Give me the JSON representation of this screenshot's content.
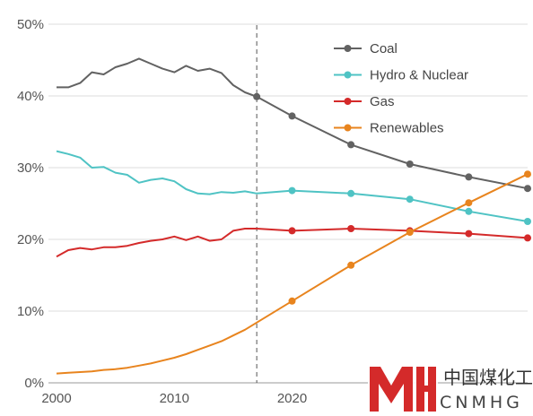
{
  "chart_data": {
    "type": "line",
    "title": "",
    "xlabel": "",
    "ylabel": "",
    "xlim": [
      2000,
      2040
    ],
    "ylim": [
      0,
      50
    ],
    "x_ticks": [
      {
        "value": 2000,
        "label": "2000"
      },
      {
        "value": 2010,
        "label": "2010"
      },
      {
        "value": 2020,
        "label": "2020"
      }
    ],
    "y_ticks": [
      {
        "value": 0,
        "label": "0%"
      },
      {
        "value": 10,
        "label": "10%"
      },
      {
        "value": 20,
        "label": "20%"
      },
      {
        "value": 30,
        "label": "30%"
      },
      {
        "value": 40,
        "label": "40%"
      },
      {
        "value": 50,
        "label": "50%"
      }
    ],
    "grid": "horizontal",
    "reference_line": {
      "x": 2017,
      "style": "dashed"
    },
    "legend_position": "top-right",
    "series": [
      {
        "name": "Coal",
        "color": "#626262",
        "x": [
          2000,
          2001,
          2002,
          2003,
          2004,
          2005,
          2006,
          2007,
          2008,
          2009,
          2010,
          2011,
          2012,
          2013,
          2014,
          2015,
          2016,
          2017,
          2020,
          2025,
          2030,
          2035,
          2040
        ],
        "values": [
          41.2,
          41.2,
          41.8,
          43.3,
          43.0,
          44.0,
          44.5,
          45.2,
          44.5,
          43.8,
          43.3,
          44.2,
          43.5,
          43.8,
          43.2,
          41.5,
          40.5,
          39.9,
          37.2,
          33.2,
          30.5,
          28.7,
          27.1
        ],
        "markers_x": [
          2017,
          2020,
          2025,
          2030,
          2035,
          2040
        ]
      },
      {
        "name": "Hydro & Nuclear",
        "color": "#4fc3c4",
        "x": [
          2000,
          2001,
          2002,
          2003,
          2004,
          2005,
          2006,
          2007,
          2008,
          2009,
          2010,
          2011,
          2012,
          2013,
          2014,
          2015,
          2016,
          2017,
          2020,
          2025,
          2030,
          2035,
          2040
        ],
        "values": [
          32.3,
          31.9,
          31.4,
          30.0,
          30.1,
          29.3,
          29.0,
          27.9,
          28.3,
          28.5,
          28.1,
          27.0,
          26.4,
          26.3,
          26.6,
          26.5,
          26.7,
          26.4,
          26.8,
          26.4,
          25.6,
          23.9,
          22.5
        ],
        "markers_x": [
          2020,
          2025,
          2030,
          2035,
          2040
        ]
      },
      {
        "name": "Gas",
        "color": "#d42a2a",
        "x": [
          2000,
          2001,
          2002,
          2003,
          2004,
          2005,
          2006,
          2007,
          2008,
          2009,
          2010,
          2011,
          2012,
          2013,
          2014,
          2015,
          2016,
          2017,
          2020,
          2025,
          2030,
          2035,
          2040
        ],
        "values": [
          17.6,
          18.5,
          18.8,
          18.6,
          18.9,
          18.9,
          19.1,
          19.5,
          19.8,
          20.0,
          20.4,
          19.9,
          20.4,
          19.8,
          20.0,
          21.2,
          21.5,
          21.5,
          21.2,
          21.5,
          21.2,
          20.8,
          20.2
        ],
        "markers_x": [
          2020,
          2025,
          2030,
          2035,
          2040
        ]
      },
      {
        "name": "Renewables",
        "color": "#e8841e",
        "x": [
          2000,
          2001,
          2002,
          2003,
          2004,
          2005,
          2006,
          2007,
          2008,
          2009,
          2010,
          2011,
          2012,
          2013,
          2014,
          2015,
          2016,
          2017,
          2020,
          2025,
          2030,
          2035,
          2040
        ],
        "values": [
          1.3,
          1.4,
          1.5,
          1.6,
          1.8,
          1.9,
          2.1,
          2.4,
          2.7,
          3.1,
          3.5,
          4.0,
          4.6,
          5.2,
          5.8,
          6.6,
          7.4,
          8.4,
          11.4,
          16.4,
          21.0,
          25.1,
          29.1
        ],
        "markers_x": [
          2020,
          2025,
          2030,
          2035,
          2040
        ]
      }
    ]
  },
  "watermark": {
    "cn_text": "中国煤化工",
    "en_text": "CNMHG",
    "color": "#d42a2a"
  }
}
